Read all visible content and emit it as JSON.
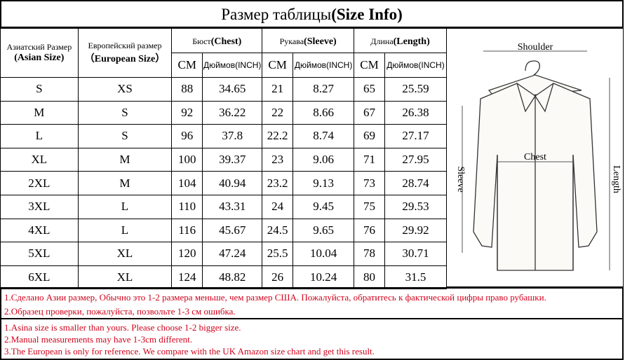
{
  "title": {
    "ru": "Размер таблицы",
    "en": "(Size Info)"
  },
  "headers": {
    "asian_ru": "Азиатский Размер",
    "asian_en": "(Asian Size)",
    "euro_ru": "Европейский размер",
    "euro_en": "（European Size）",
    "chest_ru": "Бюст",
    "chest_en": "(Chest)",
    "sleeve_ru": "Рукава",
    "sleeve_en": "(Sleeve)",
    "length_ru": "Длина",
    "length_en": "(Length)",
    "cm": "CM",
    "inch": "Дюймов(INCH)"
  },
  "rows": [
    [
      "S",
      "XS",
      "88",
      "34.65",
      "21",
      "8.27",
      "65",
      "25.59"
    ],
    [
      "M",
      "S",
      "92",
      "36.22",
      "22",
      "8.66",
      "67",
      "26.38"
    ],
    [
      "L",
      "S",
      "96",
      "37.8",
      "22.2",
      "8.74",
      "69",
      "27.17"
    ],
    [
      "XL",
      "M",
      "100",
      "39.37",
      "23",
      "9.06",
      "71",
      "27.95"
    ],
    [
      "2XL",
      "M",
      "104",
      "40.94",
      "23.2",
      "9.13",
      "73",
      "28.74"
    ],
    [
      "3XL",
      "L",
      "110",
      "43.31",
      "24",
      "9.45",
      "75",
      "29.53"
    ],
    [
      "4XL",
      "L",
      "116",
      "45.67",
      "24.5",
      "9.65",
      "76",
      "29.92"
    ],
    [
      "5XL",
      "XL",
      "120",
      "47.24",
      "25.5",
      "10.04",
      "78",
      "30.71"
    ],
    [
      "6XL",
      "XL",
      "124",
      "48.82",
      "26",
      "10.24",
      "80",
      "31.5"
    ]
  ],
  "diagram": {
    "shoulder": "Shoulder",
    "chest": "Chest",
    "sleeve": "Sleeve",
    "length": "Length"
  },
  "notes_ru": [
    "1.Сделано Азии размер, Обычно это 1-2 размера меньше, чем размер США. Пожалуйста, обратитесь к фактической цифры право рубашки.",
    "2.Образец проверки, пожалуйста, позвольте 1-3 см ошибка."
  ],
  "notes_en": [
    "1.Asina size is smaller than yours. Please choose 1-2 bigger size.",
    "2.Manual measurements may have 1-3cm different.",
    "3.The European is only for reference. We compare with the UK Amazon size chart and get this result."
  ],
  "colors": {
    "note_text": "#d0021b"
  }
}
